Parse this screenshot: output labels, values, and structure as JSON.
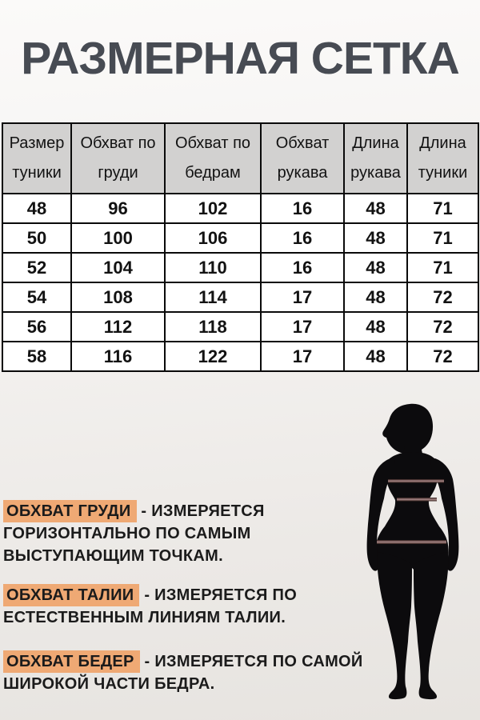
{
  "page_title": "РАЗМЕРНАЯ СЕТКА",
  "size_table": {
    "headers": [
      {
        "line1": "Размер",
        "line2": "туники"
      },
      {
        "line1": "Обхват по",
        "line2": "груди"
      },
      {
        "line1": "Обхват по",
        "line2": "бедрам"
      },
      {
        "line1": "Обхват",
        "line2": "рукава"
      },
      {
        "line1": "Длина",
        "line2": "рукава"
      },
      {
        "line1": "Длина",
        "line2": "туники"
      }
    ],
    "rows": [
      [
        "48",
        "96",
        "102",
        "16",
        "48",
        "71"
      ],
      [
        "50",
        "100",
        "106",
        "16",
        "48",
        "71"
      ],
      [
        "52",
        "104",
        "110",
        "16",
        "48",
        "71"
      ],
      [
        "54",
        "108",
        "114",
        "17",
        "48",
        "72"
      ],
      [
        "56",
        "112",
        "118",
        "17",
        "48",
        "72"
      ],
      [
        "58",
        "116",
        "122",
        "17",
        "48",
        "72"
      ]
    ]
  },
  "notes": [
    {
      "term": "ОБХВАТ ГРУДИ",
      "description": "- ИЗМЕРЯЕТСЯ ГОРИЗОНТАЛЬНО ПО САМЫМ ВЫСТУПАЮЩИМ ТОЧКАМ."
    },
    {
      "term": "ОБХВАТ ТАЛИИ",
      "description": "- ИЗМЕРЯЕТСЯ ПО ЕСТЕСТВЕННЫМ ЛИНИЯМ ТАЛИИ."
    },
    {
      "term": "ОБХВАТ БЕДЕР",
      "description": "- ИЗМЕРЯЕТСЯ ПО САМОЙ ШИРОКОЙ ЧАСТИ БЕДРА."
    }
  ],
  "figure": {
    "name": "female-body-silhouette",
    "measurement_lines": [
      "bust",
      "waist",
      "hips"
    ]
  },
  "colors": {
    "title": "#474B53",
    "highlight": "#EFA974",
    "table_header_bg": "#D2D1D0",
    "table_border": "#0A0A0A",
    "silhouette": "#0c0b0d",
    "measure_line_center": "#A08080",
    "measure_line_edge": "#2E1B18"
  },
  "chart_data": {
    "type": "table",
    "title": "РАЗМЕРНАЯ СЕТКА",
    "columns": [
      "Размер туники",
      "Обхват по груди",
      "Обхват по бедрам",
      "Обхват рукава",
      "Длина рукава",
      "Длина туники"
    ],
    "rows": [
      [
        48,
        96,
        102,
        16,
        48,
        71
      ],
      [
        50,
        100,
        106,
        16,
        48,
        71
      ],
      [
        52,
        104,
        110,
        16,
        48,
        71
      ],
      [
        54,
        108,
        114,
        17,
        48,
        72
      ],
      [
        56,
        112,
        118,
        17,
        48,
        72
      ],
      [
        58,
        116,
        122,
        17,
        48,
        72
      ]
    ]
  }
}
